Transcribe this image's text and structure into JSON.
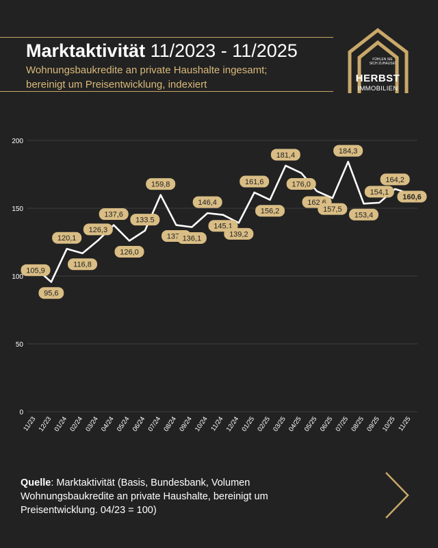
{
  "header": {
    "title_bold": "Marktaktivität",
    "title_light": "11/2023 - 11/2025",
    "subtitle_line1": "Wohnungsbaukredite an private Haushalte ingesamt;",
    "subtitle_line2": "bereinigt um Preisentwicklung, indexiert"
  },
  "logo": {
    "tagline": "FÜHLEN SIE SICH ZUHAUSE!",
    "name": "HERBST",
    "subname": "IMMOBILIEN"
  },
  "chart_data": {
    "type": "line",
    "categories": [
      "11/23",
      "12/23",
      "01/24",
      "02/24",
      "03/24",
      "04/24",
      "05/24",
      "06/24",
      "07/24",
      "08/24",
      "09/24",
      "10/24",
      "11/24",
      "12/24",
      "01/25",
      "02/25",
      "03/25",
      "04/25",
      "05/25",
      "06/25",
      "07/25",
      "08/25",
      "09/25",
      "10/25",
      "11/25"
    ],
    "values": [
      105.9,
      95.6,
      120.1,
      116.8,
      126.3,
      137.6,
      126.0,
      133.5,
      159.8,
      137.6,
      136.1,
      146.4,
      145.1,
      139.2,
      161.6,
      156.2,
      181.4,
      176.0,
      162.6,
      157.5,
      184.3,
      153.4,
      154.1,
      164.2,
      160.6
    ],
    "labels": [
      "105,9",
      "95,6",
      "120,1",
      "116,8",
      "126,3",
      "137,6",
      "126,0",
      "133.5",
      "159,8",
      "137,6",
      "136,1",
      "146,4",
      "145,1",
      "139,2",
      "161,6",
      "156,2",
      "181,4",
      "176,0",
      "162,6",
      "157,5",
      "184,3",
      "153,4",
      "154,1",
      "164,2",
      "160,6"
    ],
    "yticks": [
      "0",
      "50",
      "100",
      "150",
      "200"
    ],
    "ylim": [
      0,
      200
    ],
    "grid": true,
    "line_color": "#ffffff",
    "label_bg": "#d9bd84",
    "grid_color": "#3d3d3d"
  },
  "footer": {
    "source_label": "Quelle",
    "source_text": ": Marktaktivität (Basis, Bundesbank, Volumen Wohnungsbaukredite an private Haushalte, bereinigt um Preisentwicklung. 04/23 = 100)"
  },
  "icons": {
    "next": "chevron-right-icon",
    "logo": "house-logo-icon"
  }
}
